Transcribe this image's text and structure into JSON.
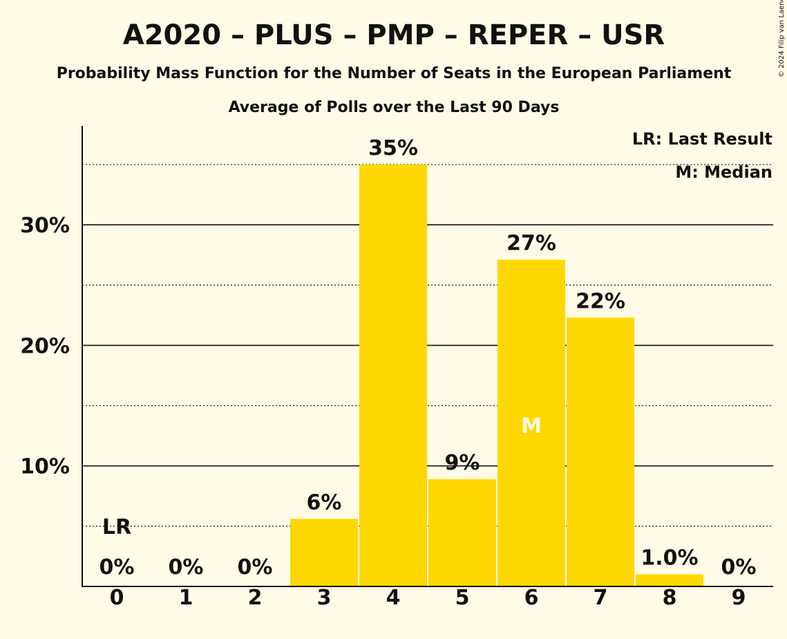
{
  "title": "A2020 – PLUS – PMP – REPER – USR",
  "subtitle": "Probability Mass Function for the Number of Seats in the European Parliament",
  "subtitle2": "Average of Polls over the Last 90 Days",
  "copyright": "© 2024 Filip van Laenen",
  "legend": {
    "last_result": "LR: Last Result",
    "median": "M: Median"
  },
  "colors": {
    "background": "#FFFBE6",
    "bar": "#FFD700",
    "text": "#111111",
    "median_text": "#FFFBE6"
  },
  "chart_data": {
    "type": "bar",
    "categories": [
      "0",
      "1",
      "2",
      "3",
      "4",
      "5",
      "6",
      "7",
      "8",
      "9"
    ],
    "values": [
      0,
      0,
      0,
      5.6,
      35.0,
      8.9,
      27.1,
      22.3,
      1.0,
      0
    ],
    "value_labels": [
      "0%",
      "0%",
      "0%",
      "6%",
      "35%",
      "9%",
      "27%",
      "22%",
      "1.0%",
      "0%"
    ],
    "ylim": [
      0,
      38
    ],
    "y_ticks": [
      10,
      20,
      30
    ],
    "y_tick_labels": [
      "10%",
      "20%",
      "30%"
    ],
    "minor_gridlines": [
      5,
      15,
      25,
      35
    ],
    "last_result_category": "0",
    "last_result_label": "LR",
    "median_category": "6",
    "median_label": "M",
    "legend_position": "top-right",
    "grid": true
  }
}
